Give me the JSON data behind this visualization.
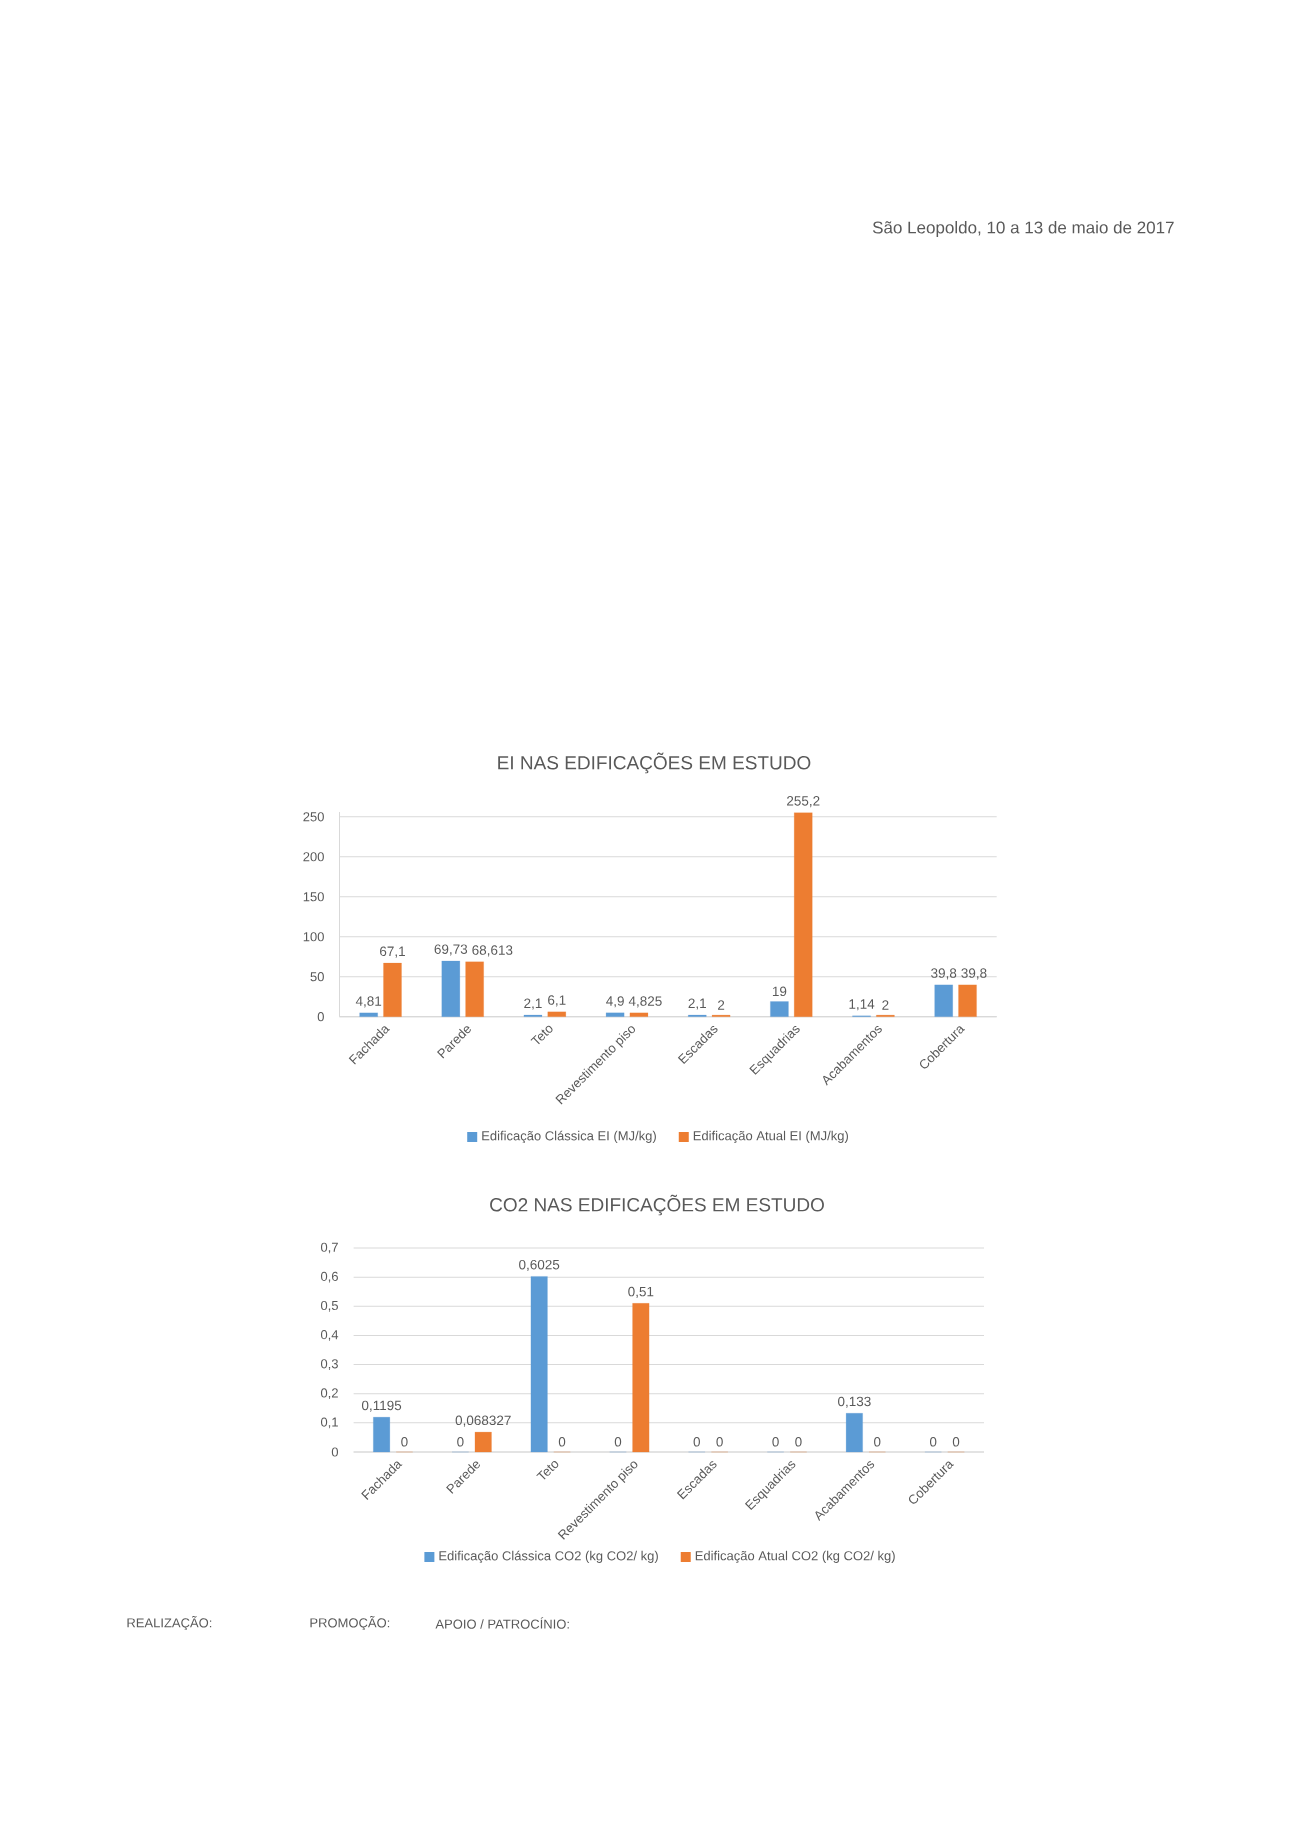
{
  "chart_data": [
    {
      "type": "bar",
      "title": "EI NAS EDIFICAÇÕES EM ESTUDO",
      "categories": [
        "Fachada",
        "Parede",
        "Teto",
        "Revestimento piso",
        "Escadas",
        "Esquadrias",
        "Acabamentos",
        "Cobertura"
      ],
      "series": [
        {
          "name": "Edificação Clássica EI (MJ/kg)",
          "color": "#5b9bd5",
          "values": [
            4.81,
            69.73,
            2.1,
            4.9,
            2.1,
            19,
            1.14,
            39.8
          ],
          "value_labels": [
            "4,81",
            "69,73",
            "2,1",
            "4,9",
            "2,1",
            "19",
            "1,14",
            "39,8"
          ]
        },
        {
          "name": "Edificação Atual EI (MJ/kg)",
          "color": "#ed7d31",
          "values": [
            67.1,
            68.613,
            6.1,
            4.825,
            2,
            255.2,
            2,
            39.8
          ],
          "value_labels": [
            "67,1",
            "68,613",
            "6,1",
            "4,825",
            "2",
            "255,2",
            "2",
            "39,8"
          ]
        }
      ],
      "ylim": [
        0,
        256
      ],
      "yticks": [
        0,
        50,
        100,
        150,
        200,
        250
      ],
      "grid": "y",
      "legend": "bottom",
      "annotations": [
        "São Leopoldo, 10 a 13 de maio de 2017"
      ]
    },
    {
      "type": "bar",
      "title": "CO2 NAS EDIFICAÇÕES EM ESTUDO",
      "categories": [
        "Fachada",
        "Parede",
        "Teto",
        "Revestimento piso",
        "Escadas",
        "Esquadrias",
        "Acabamentos",
        "Cobertura"
      ],
      "series": [
        {
          "name": "Edificação Clássica CO2 (kg CO2/ kg)",
          "color": "#5b9bd5",
          "values": [
            0.1195,
            0,
            0.6025,
            0,
            0,
            0,
            0.133,
            0
          ],
          "value_labels": [
            "0,1195",
            "0",
            "0,6025",
            "0",
            "0",
            "0",
            "0,133",
            "0"
          ]
        },
        {
          "name": "Edificação Atual CO2 (kg CO2/ kg)",
          "color": "#ed7d31",
          "values": [
            0,
            0.068327,
            0,
            0.51,
            0,
            0,
            0,
            0
          ],
          "value_labels": [
            "0",
            "0,068327",
            "0",
            "0,51",
            "0",
            "0",
            "0",
            "0"
          ]
        }
      ],
      "ylim": [
        0,
        0.7
      ],
      "yticks": [
        0,
        {
          "value": 0.1,
          "label": "0,1"
        },
        {
          "value": 0.2,
          "label": "0,2"
        },
        {
          "value": 0.3,
          "label": "0,3"
        },
        {
          "value": 0.4,
          "label": "0,4"
        },
        {
          "value": 0.5,
          "label": "0,5"
        },
        {
          "value": 0.6,
          "label": "0,6"
        },
        {
          "value": 0.7,
          "label": "0,7"
        }
      ],
      "grid": "y",
      "legend": "bottom",
      "annotations": [
        "REALIZAÇÃO:",
        "PROMOÇÃO:",
        "APOIO / PATROCÍNIO:"
      ]
    }
  ]
}
